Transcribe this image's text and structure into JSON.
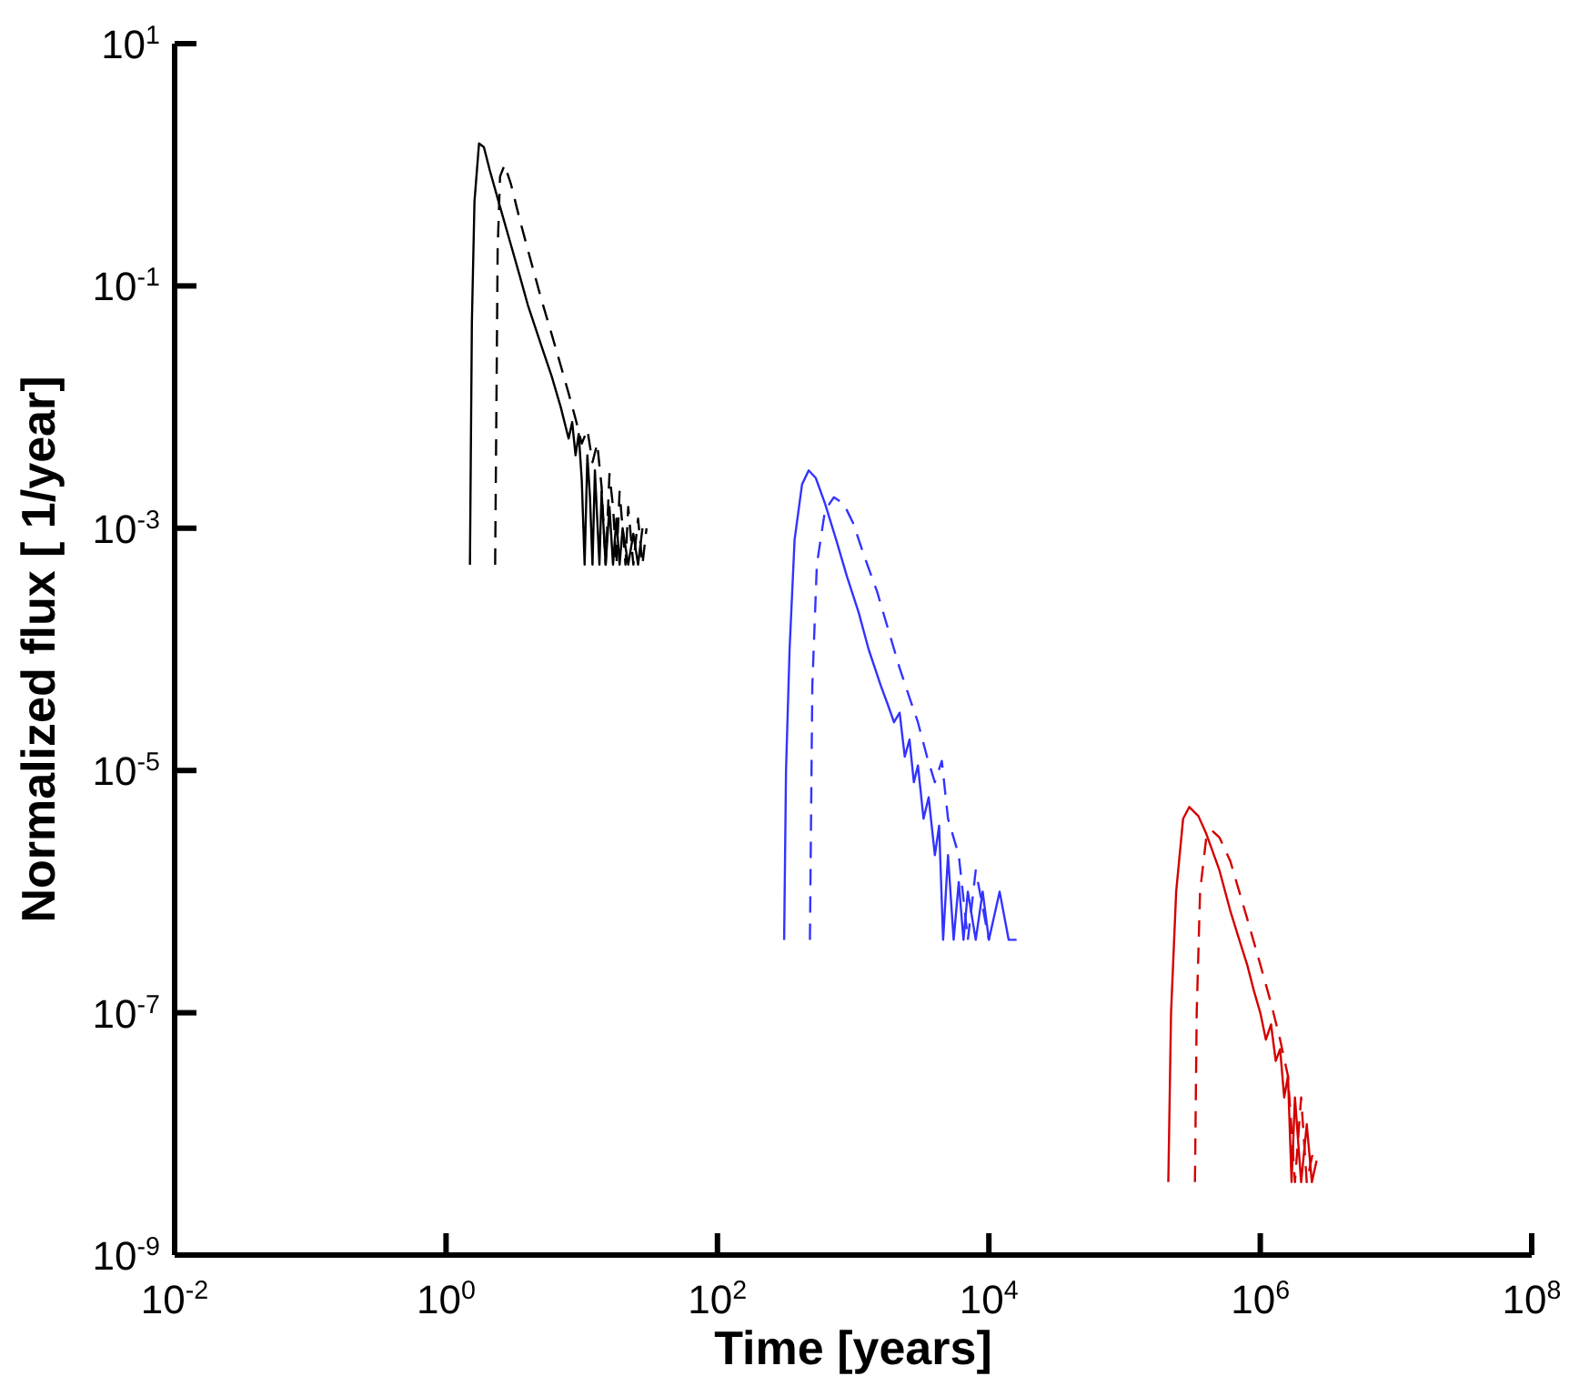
{
  "chart_data": {
    "type": "line",
    "xlabel": "Time [years]",
    "ylabel": "Normalized flux [ 1/year]",
    "log": "xy",
    "grid": false,
    "xlim": [
      0.01,
      100000000
    ],
    "ylim": [
      1e-09,
      10
    ],
    "xticks": [
      {
        "value": 0.01,
        "label": "10$^{-2}$"
      },
      {
        "value": 1,
        "label": "10$^{0}$"
      },
      {
        "value": 100,
        "label": "10$^{2}$"
      },
      {
        "value": 10000,
        "label": "10$^{4}$"
      },
      {
        "value": 1000000,
        "label": "10$^{6}$"
      },
      {
        "value": 100000000,
        "label": "10$^{8}$"
      }
    ],
    "yticks": [
      {
        "value": 1e-09,
        "label": "10$^{-9}$"
      },
      {
        "value": 1e-07,
        "label": "10$^{-7}$"
      },
      {
        "value": 1e-05,
        "label": "10$^{-5}$"
      },
      {
        "value": 0.001,
        "label": "10$^{-3}$"
      },
      {
        "value": 0.1,
        "label": "10$^{-1}$"
      },
      {
        "value": 10,
        "label": "10$^{1}$"
      }
    ],
    "series": [
      {
        "color": "#000000",
        "line_style": "solid",
        "x": [
          1.5,
          1.55,
          1.62,
          1.75,
          1.9,
          2.1,
          2.5,
          3,
          3.5,
          4,
          5,
          6,
          7,
          8,
          8.5,
          9,
          9.5,
          10,
          10.5,
          11,
          11.5,
          12,
          12.5,
          13,
          13.5,
          14,
          15,
          16,
          17,
          18,
          19,
          20,
          22,
          24,
          26,
          28
        ],
        "values": [
          0.0005,
          0.05,
          0.5,
          1.5,
          1.4,
          0.9,
          0.45,
          0.22,
          0.12,
          0.07,
          0.033,
          0.018,
          0.01,
          0.0055,
          0.0075,
          0.004,
          0.006,
          0.0025,
          0.0005,
          0.004,
          0.0018,
          0.0005,
          0.003,
          0.0012,
          0.0005,
          0.002,
          0.0005,
          0.0015,
          0.0005,
          0.0012,
          0.0005,
          0.001,
          0.0005,
          0.0009,
          0.0005,
          0.001
        ]
      },
      {
        "color": "#000000",
        "line_style": "dashed",
        "x": [
          2.3,
          2.35,
          2.4,
          2.5,
          2.7,
          3,
          3.5,
          4,
          5,
          6,
          7,
          8,
          9,
          10,
          11,
          12,
          13,
          14,
          15,
          16,
          17,
          18,
          19,
          20,
          21,
          22,
          24,
          26,
          28,
          30
        ],
        "values": [
          0.0005,
          0.01,
          0.2,
          0.8,
          1.0,
          0.7,
          0.35,
          0.2,
          0.08,
          0.04,
          0.022,
          0.013,
          0.008,
          0.005,
          0.0065,
          0.0035,
          0.005,
          0.0022,
          0.0005,
          0.0028,
          0.0015,
          0.0005,
          0.002,
          0.001,
          0.0005,
          0.0015,
          0.0005,
          0.0012,
          0.0005,
          0.001
        ]
      },
      {
        "color": "#3333ff",
        "line_style": "solid",
        "x": [
          310,
          320,
          340,
          370,
          420,
          470,
          530,
          620,
          750,
          900,
          1100,
          1300,
          1600,
          1800,
          2000,
          2200,
          2400,
          2600,
          2800,
          3000,
          3300,
          3600,
          4000,
          4300,
          4600,
          5000,
          5500,
          6000,
          6500,
          7000,
          8000,
          9000,
          10000,
          12000,
          14000,
          16000
        ],
        "values": [
          4e-07,
          1e-05,
          0.0001,
          0.0008,
          0.0023,
          0.003,
          0.0026,
          0.0016,
          0.0008,
          0.0004,
          0.0002,
          0.0001,
          5e-05,
          3.5e-05,
          2.5e-05,
          3e-05,
          1.3e-05,
          1.8e-05,
          8e-06,
          1.1e-05,
          4e-06,
          6e-06,
          2e-06,
          3.5e-06,
          4e-07,
          2e-06,
          4e-07,
          1.2e-06,
          4e-07,
          1e-06,
          4e-07,
          1e-06,
          4e-07,
          1e-06,
          4e-07,
          4e-07
        ]
      },
      {
        "color": "#3333ff",
        "line_style": "dashed",
        "x": [
          480,
          500,
          540,
          620,
          720,
          850,
          1000,
          1200,
          1500,
          1800,
          2200,
          2600,
          3000,
          3500,
          4000,
          4500,
          5000,
          6000,
          7000,
          8000,
          10000
        ],
        "values": [
          4e-07,
          5e-05,
          0.0005,
          0.0014,
          0.0018,
          0.0016,
          0.0011,
          0.0006,
          0.0003,
          0.00015,
          7e-05,
          4e-05,
          2.5e-05,
          1.3e-05,
          8e-06,
          1.2e-05,
          4e-06,
          2e-06,
          4e-07,
          1.5e-06,
          4e-07
        ]
      },
      {
        "color": "#d40000",
        "line_style": "solid",
        "x": [
          210000,
          220000,
          240000,
          270000,
          300000,
          350000,
          400000,
          500000,
          600000,
          700000,
          800000,
          900000,
          1000000,
          1100000,
          1200000,
          1300000,
          1400000,
          1500000,
          1600000,
          1700000,
          1800000,
          2000000,
          2200000,
          2400000,
          2600000
        ],
        "values": [
          4e-09,
          1e-07,
          1e-06,
          4e-06,
          5e-06,
          4.2e-06,
          3e-06,
          1.5e-06,
          7e-07,
          4e-07,
          2.5e-07,
          1.5e-07,
          1e-07,
          6e-08,
          8e-08,
          4e-08,
          5e-08,
          2e-08,
          3e-08,
          4e-09,
          2e-08,
          4e-09,
          1.2e-08,
          4e-09,
          6e-09
        ]
      },
      {
        "color": "#d40000",
        "line_style": "dashed",
        "x": [
          330000,
          340000,
          360000,
          400000,
          440000,
          500000,
          600000,
          700000,
          800000,
          1000000,
          1200000,
          1400000,
          1600000,
          1800000,
          2000000,
          2200000,
          2500000
        ],
        "values": [
          4e-09,
          1e-07,
          1e-06,
          2.8e-06,
          3.2e-06,
          2.8e-06,
          1.8e-06,
          1e-06,
          6e-07,
          2.5e-07,
          1.2e-07,
          6e-08,
          3e-08,
          4e-09,
          2e-08,
          4e-09,
          8e-09
        ]
      }
    ]
  }
}
